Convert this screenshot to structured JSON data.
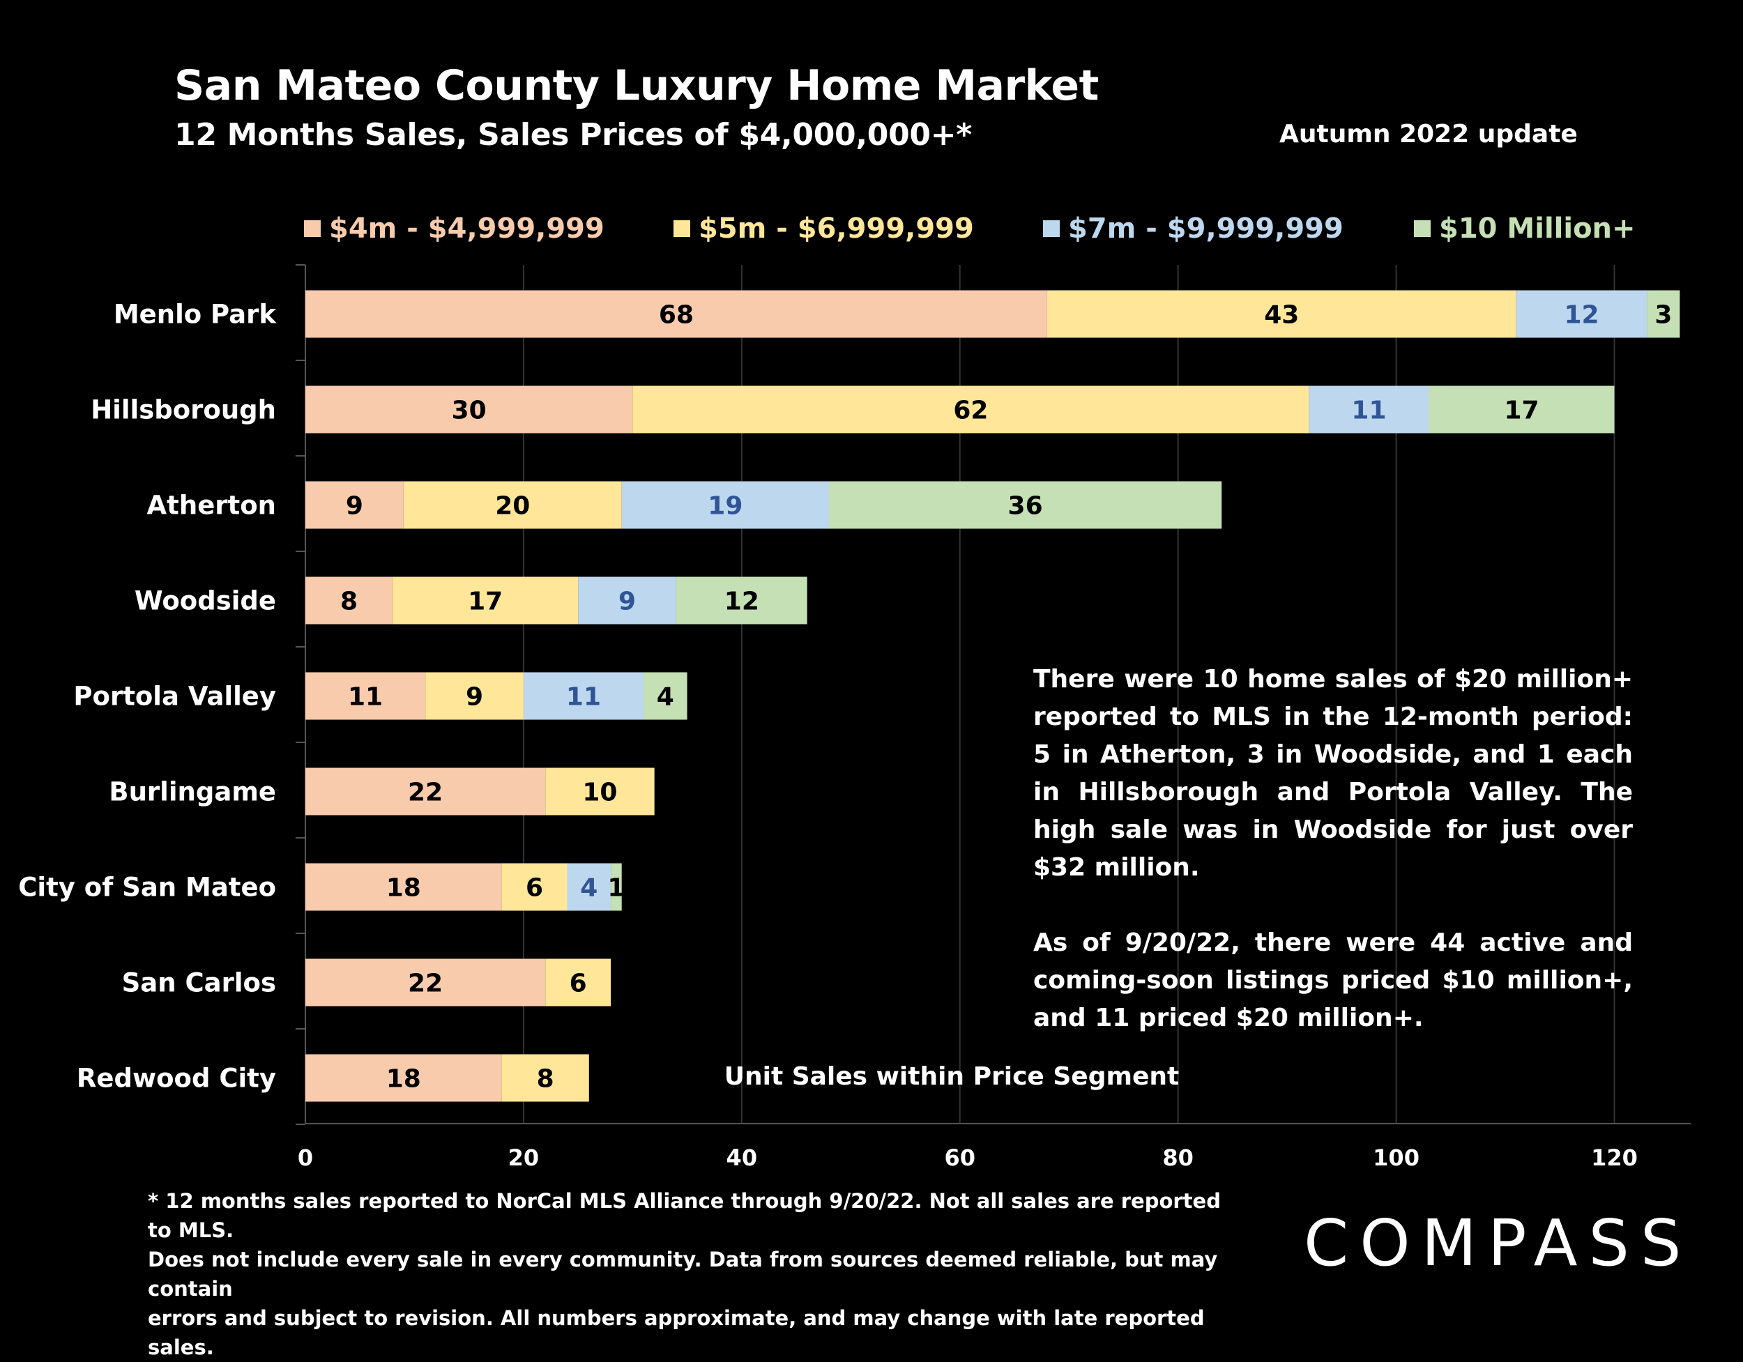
{
  "header": {
    "title": "San Mateo County Luxury Home Market",
    "subtitle": "12 Months Sales, Sales Prices of $4,000,000+*",
    "update": "Autumn 2022 update"
  },
  "chart_data": {
    "type": "bar",
    "orientation": "horizontal",
    "stacked": true,
    "categories": [
      "Menlo Park",
      "Hillsborough",
      "Atherton",
      "Woodside",
      "Portola Valley",
      "Burlingame",
      "City of San Mateo",
      "San Carlos",
      "Redwood City"
    ],
    "series": [
      {
        "name": "$4m - $4,999,999",
        "color": "#f8cbad",
        "label_color": "#000000",
        "values": [
          68,
          30,
          9,
          8,
          11,
          22,
          18,
          22,
          18
        ]
      },
      {
        "name": "$5m - $6,999,999",
        "color": "#ffe699",
        "label_color": "#000000",
        "values": [
          43,
          62,
          20,
          17,
          9,
          10,
          6,
          6,
          8
        ]
      },
      {
        "name": "$7m - $9,999,999",
        "color": "#bdd7ee",
        "label_color": "#2f5597",
        "values": [
          12,
          11,
          19,
          9,
          11,
          null,
          4,
          null,
          null
        ]
      },
      {
        "name": "$10 Million+",
        "color": "#c5e0b4",
        "label_color": "#000000",
        "values": [
          3,
          17,
          36,
          12,
          4,
          null,
          1,
          null,
          null
        ]
      }
    ],
    "legend_text_colors": [
      "#f8cbad",
      "#ffe699",
      "#bdd7ee",
      "#c5e0b4"
    ],
    "xlim": [
      0,
      127
    ],
    "xticks": [
      0,
      20,
      40,
      60,
      80,
      100,
      120
    ],
    "xlabel": "Unit Sales within Price Segment",
    "grid": true
  },
  "annotation": {
    "paragraph1": "There were 10 home sales of $20 million+ reported to MLS in the 12-month period: 5 in Atherton, 3 in Woodside, and 1 each in Hillsborough and Portola Valley. The high sale was in Woodside for just over $32 million.",
    "paragraph2": "As of 9/20/22, there were 44 active and coming-soon listings priced $10 million+, and 11 priced $20 million+."
  },
  "footnote": {
    "line1": "* 12 months sales reported to NorCal MLS Alliance through 9/20/22. Not all sales are reported to MLS.",
    "line2": "Does not include every sale in every community. Data from  sources deemed reliable, but may contain",
    "line3": "errors and subject to revision. All numbers approximate, and may change with late reported sales."
  },
  "logo": {
    "text": "COMPASS"
  }
}
